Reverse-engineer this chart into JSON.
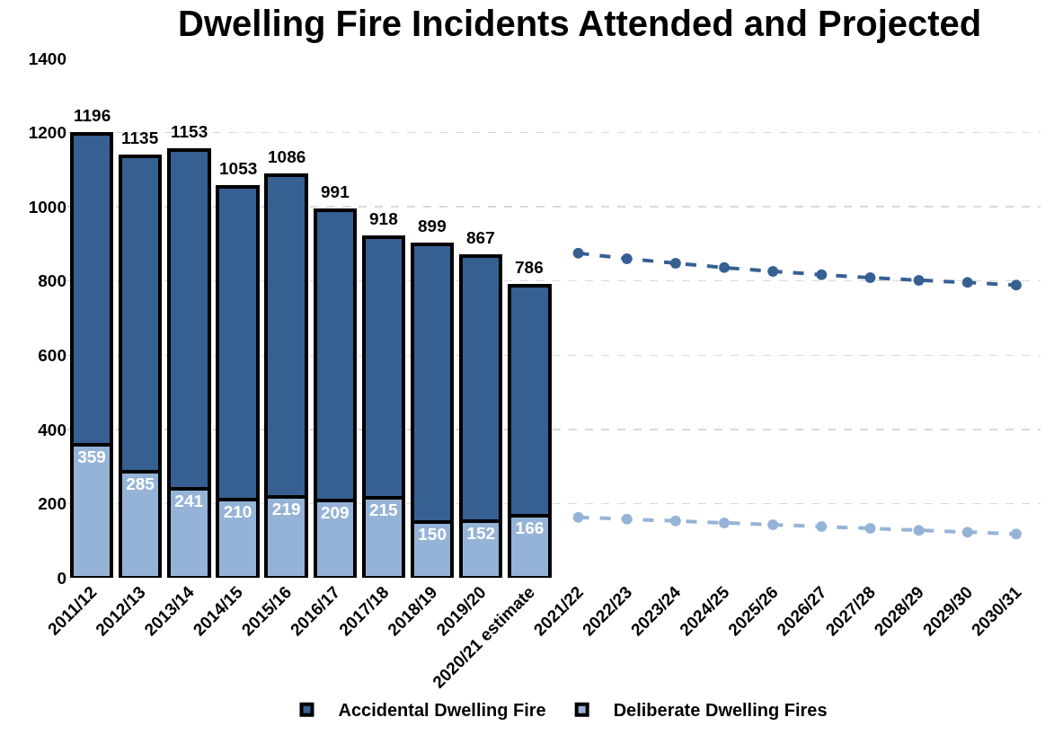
{
  "chart_data": {
    "type": "bar",
    "title": "Dwelling Fire Incidents Attended and Projected",
    "categories": [
      "2011/12",
      "2012/13",
      "2013/14",
      "2014/15",
      "2015/16",
      "2016/17",
      "2017/18",
      "2018/19",
      "2019/20",
      "2020/21 estimate",
      "2021/22",
      "2022/23",
      "2023/24",
      "2024/25",
      "2025/26",
      "2026/27",
      "2027/28",
      "2028/29",
      "2029/30",
      "2030/31"
    ],
    "stacked": true,
    "series": [
      {
        "name": "Deliberate Dwelling Fires",
        "color": "#95b3d7",
        "values": [
          359,
          285,
          241,
          210,
          219,
          209,
          215,
          150,
          152,
          166,
          null,
          null,
          null,
          null,
          null,
          null,
          null,
          null,
          null,
          null
        ],
        "value_labels": [
          "359",
          "285",
          "241",
          "210",
          "219",
          "209",
          "215",
          "150",
          "152",
          "166",
          null,
          null,
          null,
          null,
          null,
          null,
          null,
          null,
          null,
          null
        ]
      },
      {
        "name": "Accidental Dwelling Fire",
        "color": "#366092",
        "values": [
          837,
          850,
          912,
          843,
          867,
          782,
          703,
          749,
          715,
          620,
          null,
          null,
          null,
          null,
          null,
          null,
          null,
          null,
          null,
          null
        ]
      },
      {
        "type": "line",
        "color": "#366092",
        "marker": "circle",
        "line_style": "dashed",
        "values": [
          null,
          null,
          null,
          null,
          null,
          null,
          null,
          null,
          null,
          null,
          875,
          860,
          848,
          836,
          826,
          817,
          809,
          802,
          796,
          789
        ]
      },
      {
        "type": "line",
        "color": "#95b3d7",
        "marker": "circle",
        "line_style": "dashed",
        "values": [
          null,
          null,
          null,
          null,
          null,
          null,
          null,
          null,
          null,
          null,
          163,
          158,
          153,
          148,
          143,
          138,
          133,
          128,
          123,
          118
        ]
      }
    ],
    "totals": [
      "1196",
      "1135",
      "1153",
      "1053",
      "1086",
      "991",
      "918",
      "899",
      "867",
      "786",
      null,
      null,
      null,
      null,
      null,
      null,
      null,
      null,
      null,
      null
    ],
    "ylim": [
      0,
      1400
    ],
    "yticks": [
      0,
      200,
      400,
      600,
      800,
      1000,
      1200,
      1400
    ],
    "grid": "y",
    "legend": "bottom"
  }
}
